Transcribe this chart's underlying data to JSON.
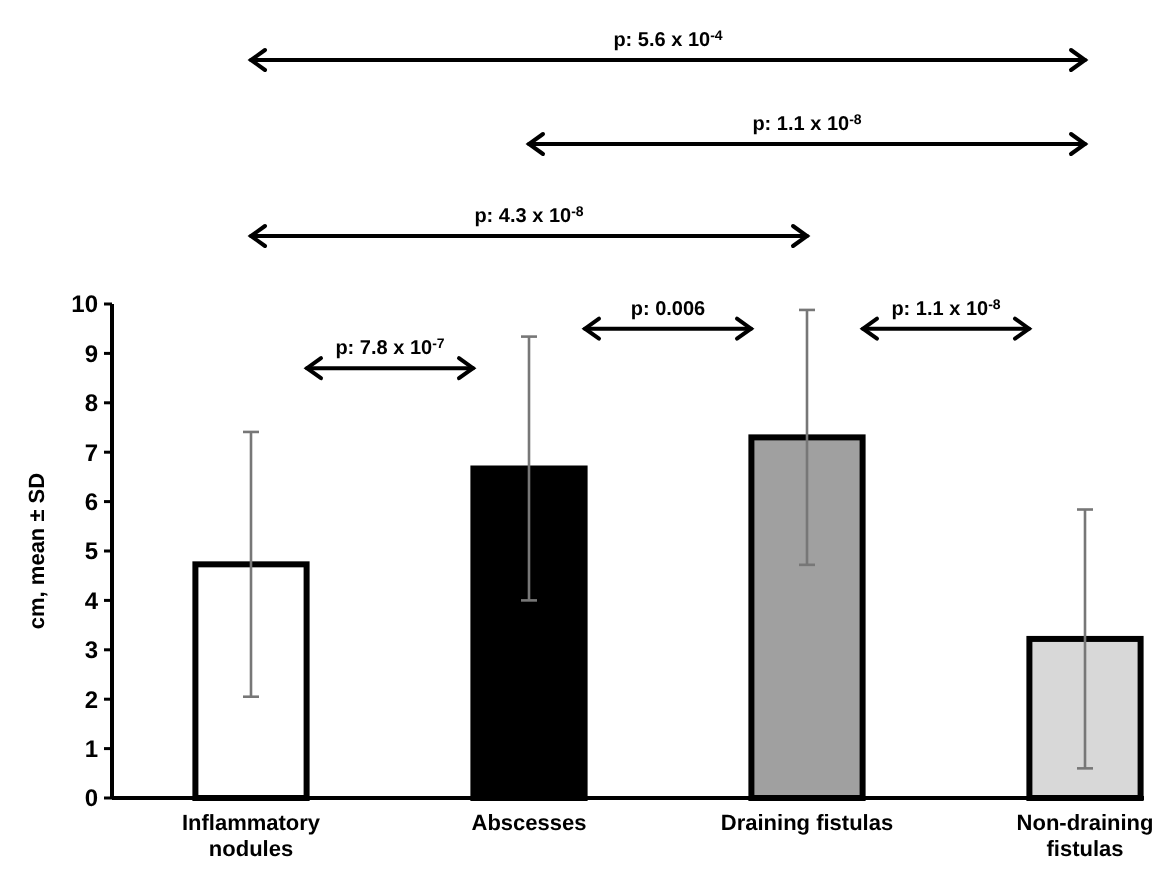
{
  "chart_data": {
    "type": "bar",
    "ylabel": "cm, mean ± SD",
    "categories": [
      "Inflammatory nodules",
      "Abscesses",
      "Draining fistulas",
      "Non-draining fistulas"
    ],
    "values": [
      4.73,
      6.67,
      7.3,
      3.22
    ],
    "errors": [
      2.68,
      2.67,
      2.58,
      2.62
    ],
    "colors": [
      "#ffffff",
      "#000000",
      "#a0a0a0",
      "#d8d8d8"
    ],
    "ylim": [
      0,
      10
    ],
    "yticks": [
      0,
      1,
      2,
      3,
      4,
      5,
      6,
      7,
      8,
      9,
      10
    ],
    "grid": false,
    "annotations": [
      "p: 5.6 x 10$^{-4}$",
      "p: 1.1 x 10$^{-8}$",
      "p: 4.3 x 10$^{-8}$",
      "p: 7.8 x 10$^{-7}$",
      "p: 0.006",
      "p: 1.1 x 10$^{-8}$"
    ]
  }
}
